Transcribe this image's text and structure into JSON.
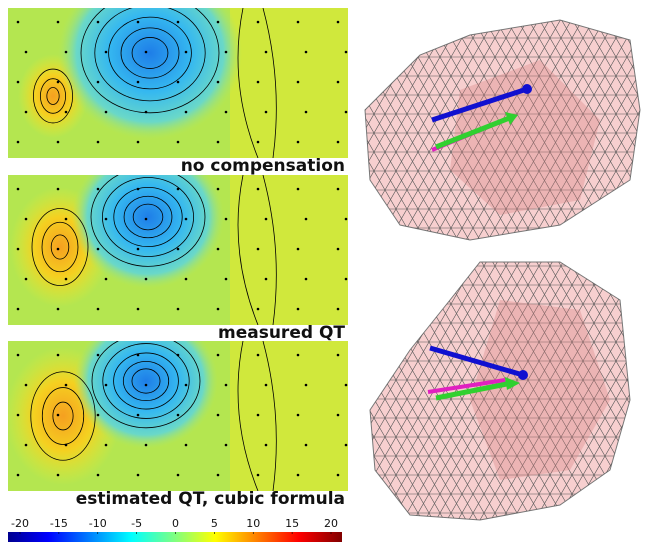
{
  "panels": [
    {
      "label": "no compensation"
    },
    {
      "label": "measured QT"
    },
    {
      "label": "estimated QT, cubic formula"
    }
  ],
  "colorbar": {
    "lim": [
      -20,
      20
    ],
    "ticks": [
      -20,
      -15,
      -10,
      -5,
      0,
      5,
      10,
      15,
      20
    ]
  }
}
